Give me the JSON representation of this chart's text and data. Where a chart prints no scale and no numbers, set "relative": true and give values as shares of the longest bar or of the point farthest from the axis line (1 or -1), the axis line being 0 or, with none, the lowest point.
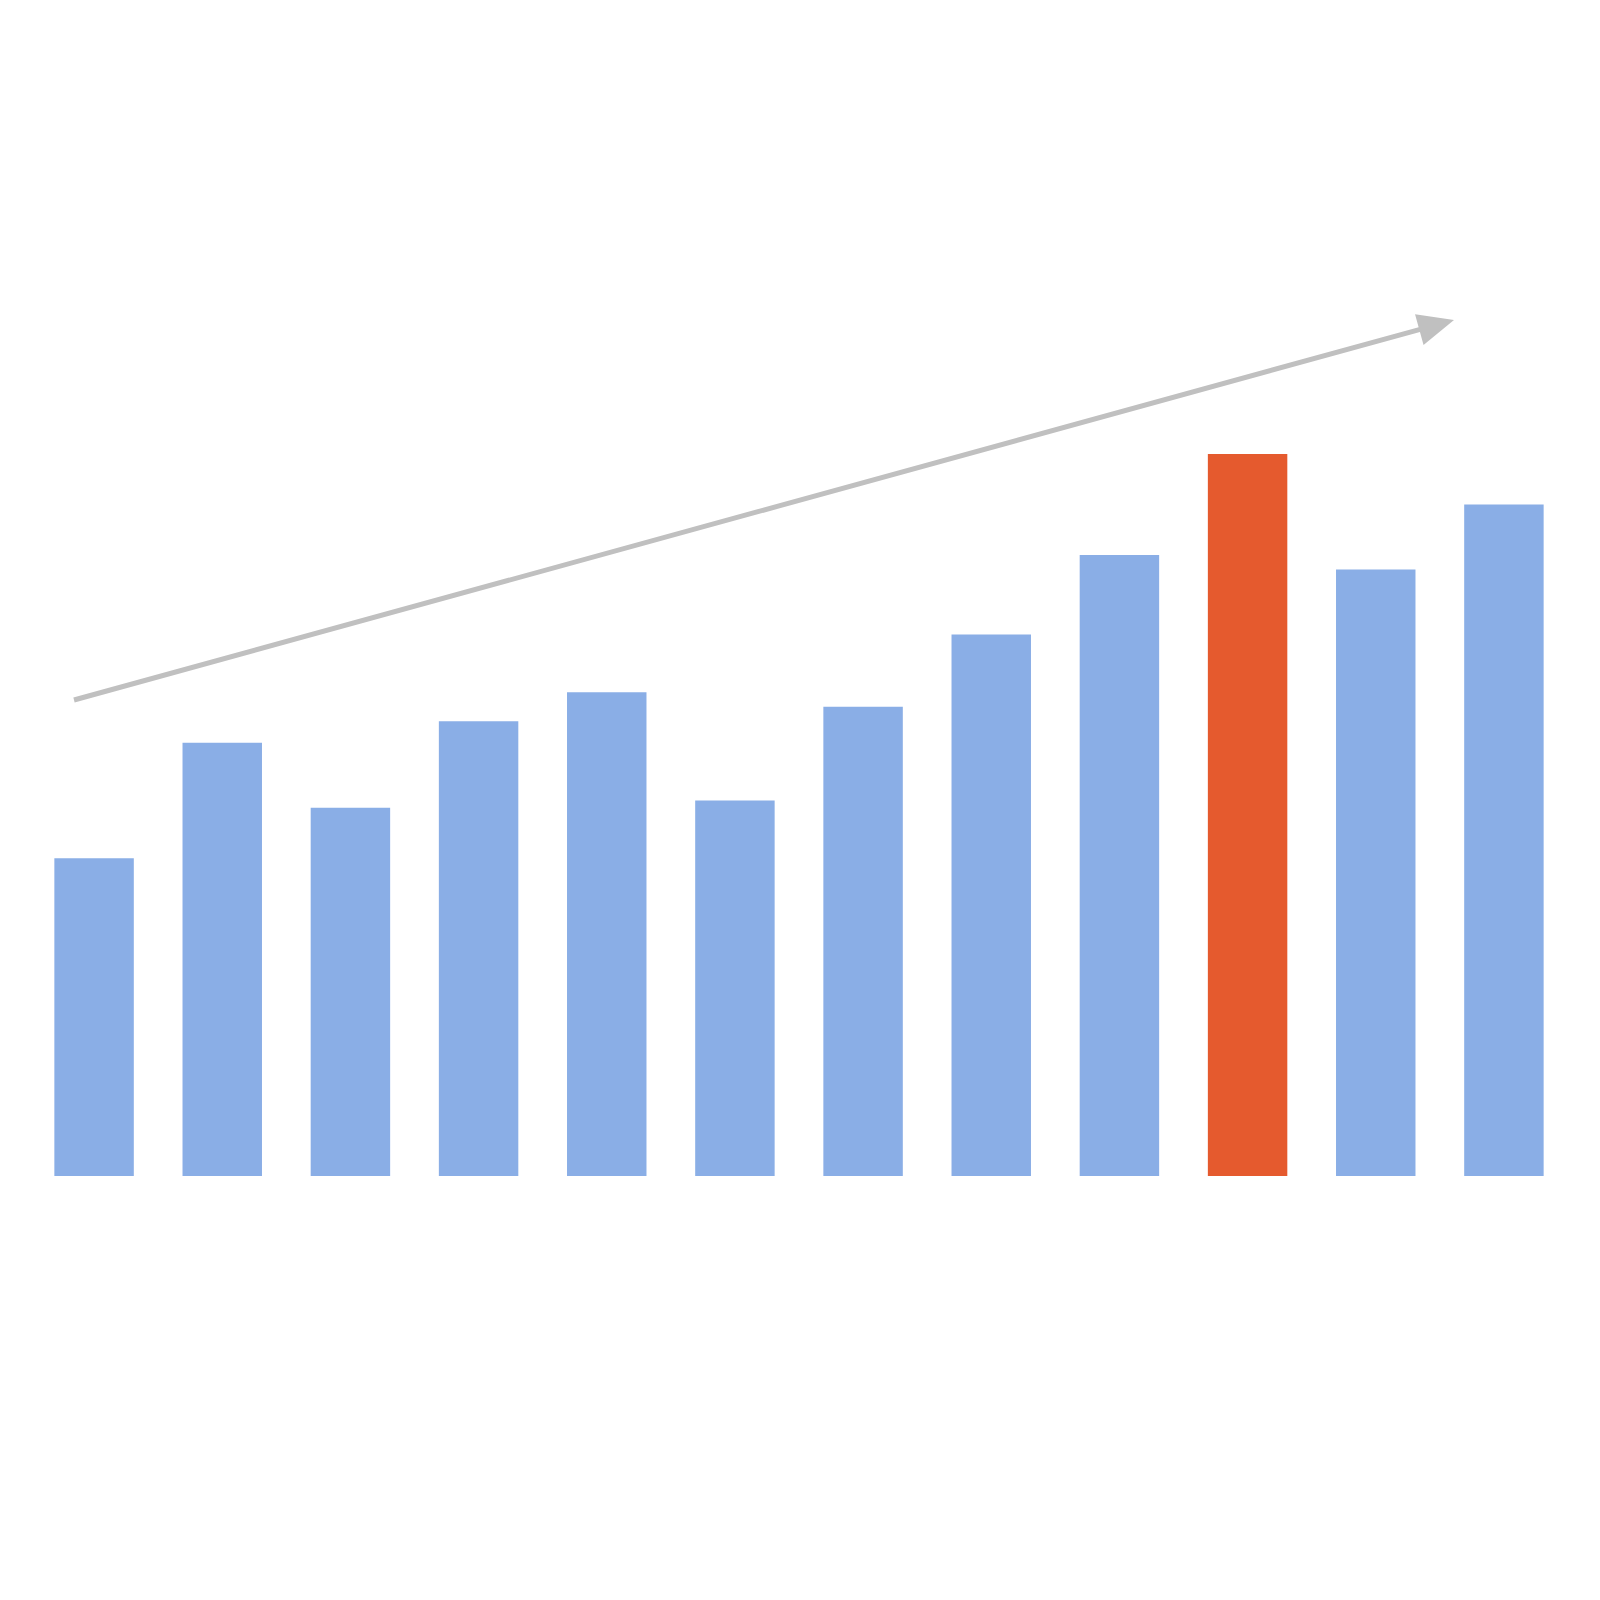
{
  "chart_data": {
    "type": "bar",
    "relative": true,
    "categories": [
      null,
      null,
      null,
      null,
      null,
      null,
      null,
      null,
      null,
      null,
      null,
      null
    ],
    "values": [
      0.44,
      0.6,
      0.51,
      0.63,
      0.67,
      0.52,
      0.65,
      0.75,
      0.86,
      1,
      0.84,
      0.93
    ],
    "colors": [
      "#8aaee6",
      "#8aaee6",
      "#8aaee6",
      "#8aaee6",
      "#8aaee6",
      "#8aaee6",
      "#8aaee6",
      "#8aaee6",
      "#8aaee6",
      "#e55a2e",
      "#8aaee6",
      "#8aaee6"
    ],
    "grid": false,
    "legend": false
  }
}
